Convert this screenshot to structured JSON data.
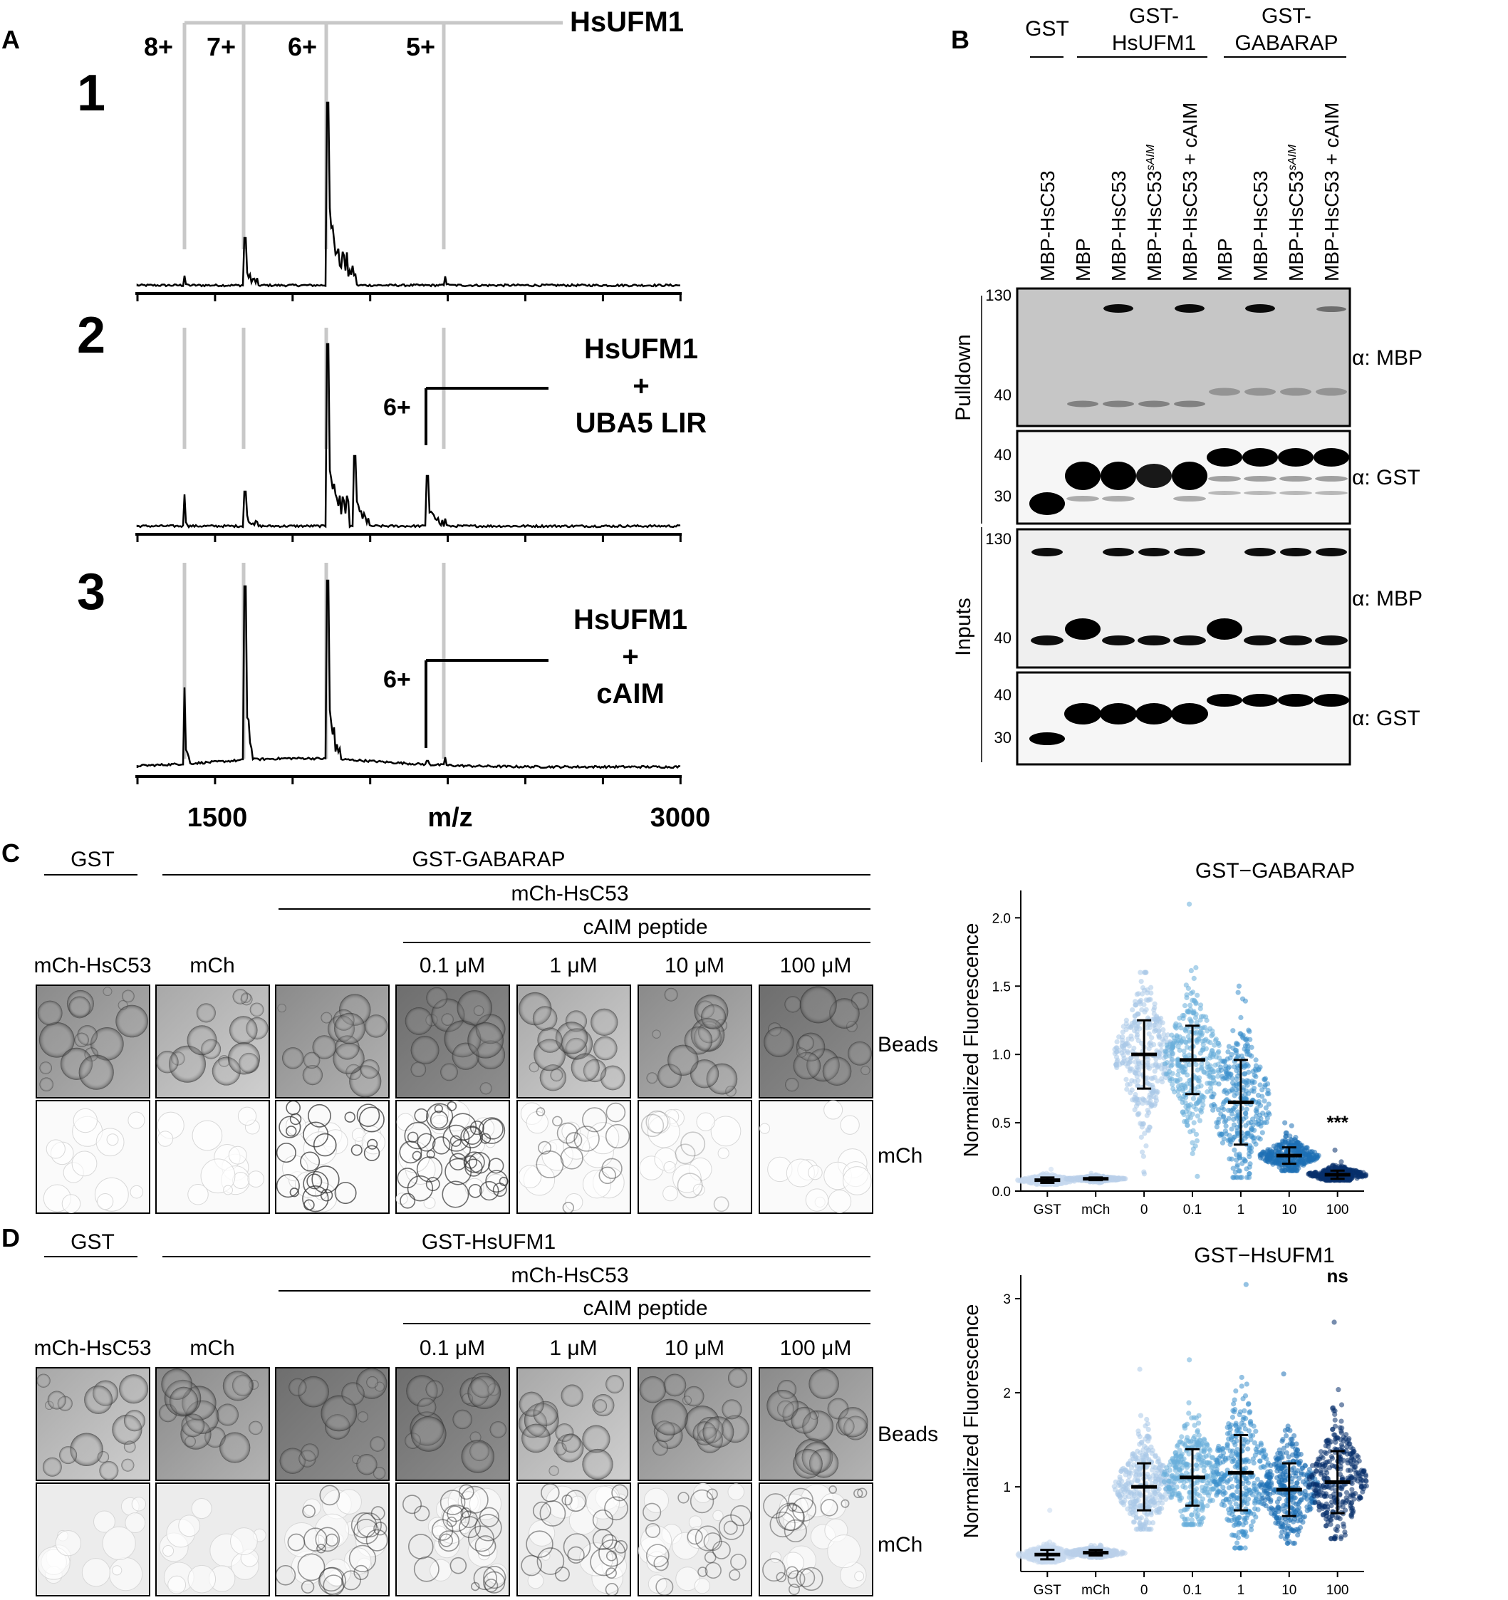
{
  "panel_letters": {
    "a": "A",
    "b": "B",
    "c": "C",
    "d": "D"
  },
  "panel_a": {
    "protein_label": "HsUFM1",
    "charge_states": [
      "8+",
      "7+",
      "6+",
      "5+"
    ],
    "spectra": [
      {
        "number": "1",
        "label_lines": []
      },
      {
        "number": "2",
        "label_lines": [
          "HsUFM1",
          "+",
          "UBA5 LIR"
        ],
        "complex_charge": "6+"
      },
      {
        "number": "3",
        "label_lines": [
          "HsUFM1",
          "+",
          "cAIM"
        ],
        "complex_charge": "6+"
      }
    ],
    "x_axis": {
      "ticks": [
        "1500",
        "m/z",
        "3000"
      ]
    }
  },
  "panel_b": {
    "group_headers": [
      {
        "label": "GST",
        "lines": [
          "GST"
        ]
      },
      {
        "label": "GST-HsUFM1",
        "lines": [
          "GST-",
          "HsUFM1"
        ]
      },
      {
        "label": "GST-GABARAP",
        "lines": [
          "GST-",
          "GABARAP"
        ]
      }
    ],
    "lanes": [
      "MBP-HsC53",
      "MBP",
      "MBP-HsC53",
      "MBP-HsC53",
      "MBP-HsC53 + cAIM",
      "MBP",
      "MBP-HsC53",
      "MBP-HsC53",
      "MBP-HsC53 + cAIM"
    ],
    "lane_superscripts": [
      "",
      "",
      "",
      "sAIM",
      "",
      "",
      "",
      "sAIM",
      ""
    ],
    "sections": [
      "Pulldown",
      "Inputs"
    ],
    "blots": [
      {
        "antibody": "α: MBP",
        "markers": [
          "130",
          "40"
        ]
      },
      {
        "antibody": "α: GST",
        "markers": [
          "40",
          "30"
        ]
      },
      {
        "antibody": "α: MBP",
        "markers": [
          "130",
          "40"
        ]
      },
      {
        "antibody": "α: GST",
        "markers": [
          "40",
          "30"
        ]
      }
    ]
  },
  "panel_c": {
    "headers": {
      "gst": "GST",
      "bait": "GST-GABARAP",
      "prey": "mCh-HsC53",
      "peptide": "cAIM peptide"
    },
    "columns": [
      "mCh-HsC53",
      "mCh",
      "",
      "0.1 μM",
      "1 μM",
      "10 μM",
      "100 μM"
    ],
    "row_labels": [
      "Beads",
      "mCh"
    ]
  },
  "panel_d": {
    "headers": {
      "gst": "GST",
      "bait": "GST-HsUFM1",
      "prey": "mCh-HsC53",
      "peptide": "cAIM peptide"
    },
    "columns": [
      "mCh-HsC53",
      "mCh",
      "",
      "0.1 μM",
      "1 μM",
      "10 μM",
      "100 μM"
    ],
    "row_labels": [
      "Beads",
      "mCh"
    ]
  },
  "chart_data": [
    {
      "type": "scatter",
      "title": "GST−GABARAP",
      "xlabel": "",
      "ylabel": "Normalized Fluorescence",
      "categories": [
        "GST",
        "mCh",
        "0",
        "0.1",
        "1",
        "10",
        "100"
      ],
      "yticks": [
        "0.0",
        "0.5",
        "1.0",
        "1.5",
        "2.0"
      ],
      "ylim": [
        0,
        2.2
      ],
      "means": [
        0.08,
        0.09,
        1.0,
        0.96,
        0.65,
        0.26,
        0.12
      ],
      "sd": [
        0.02,
        0.01,
        0.25,
        0.25,
        0.31,
        0.06,
        0.03
      ],
      "max": [
        0.16,
        0.13,
        1.6,
        2.1,
        1.5,
        0.5,
        0.3
      ],
      "min": [
        0.05,
        0.06,
        0.1,
        0.1,
        0.1,
        0.15,
        0.08
      ],
      "annotation": {
        "category": "100",
        "text": "***"
      },
      "colors": [
        "#c6d9ef",
        "#b9d0ea",
        "#a9c9e8",
        "#6aaedb",
        "#3d8fcc",
        "#1e6fb5",
        "#08306b"
      ]
    },
    {
      "type": "scatter",
      "title": "GST−HsUFM1",
      "xlabel": "",
      "ylabel": "Normalized Fluorescence",
      "categories": [
        "GST",
        "mCh",
        "0",
        "0.1",
        "1",
        "10",
        "100"
      ],
      "yticks": [
        "1",
        "2",
        "3"
      ],
      "ylim": [
        0.1,
        3.25
      ],
      "means": [
        0.28,
        0.3,
        1.0,
        1.1,
        1.15,
        0.97,
        1.05
      ],
      "sd": [
        0.05,
        0.03,
        0.25,
        0.3,
        0.4,
        0.28,
        0.33
      ],
      "max": [
        0.75,
        0.38,
        2.25,
        2.35,
        3.15,
        2.2,
        2.75
      ],
      "min": [
        0.2,
        0.25,
        0.55,
        0.6,
        0.35,
        0.4,
        0.45
      ],
      "annotation": {
        "category": "100",
        "text": "ns"
      },
      "colors": [
        "#c6d9ef",
        "#b9d0ea",
        "#a9c9e8",
        "#6aaedb",
        "#3d8fcc",
        "#1e6fb5",
        "#08306b"
      ]
    }
  ]
}
